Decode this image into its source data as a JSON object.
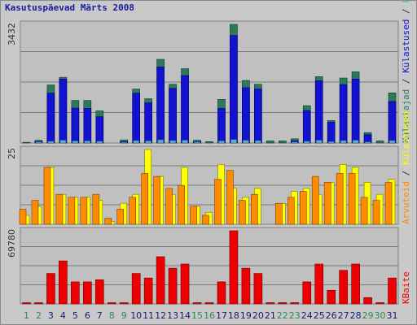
{
  "chart_data": {
    "title": "Kasutuspäevad Märts 2008",
    "type": "bar",
    "days": [
      "1",
      "2",
      "3",
      "4",
      "5",
      "6",
      "7",
      "8",
      "9",
      "10",
      "11",
      "12",
      "13",
      "14",
      "15",
      "16",
      "17",
      "18",
      "19",
      "20",
      "21",
      "22",
      "23",
      "24",
      "25",
      "26",
      "27",
      "28",
      "29",
      "30",
      "31"
    ],
    "weekend_days": [
      "1",
      "2",
      "8",
      "9",
      "15",
      "16",
      "22",
      "23",
      "29",
      "30"
    ],
    "colors": {
      "weekday_label": "#1a1a6e",
      "weekend_label": "#2e8b57",
      "visitors": "#2d7a5a",
      "visits": "#1212d0",
      "pages": "#ffff00",
      "hits": "#ff8c00",
      "bandwidth": "#ee0000",
      "files": "#5fb0c8",
      "grid": "#7a7a7a",
      "panel": "#c0c0c0"
    },
    "panels": [
      {
        "id": "traffic-top",
        "ymax_label": "3432",
        "ymax": 3432,
        "legend_text": "Külastajad / Külastused / Faile / Pöördumisi",
        "legend": [
          {
            "name": "Külastajad",
            "color": "#2d7a5a"
          },
          {
            "name": "Külastused",
            "color": "#1212d0"
          },
          {
            "name": "Faile",
            "color": "#5fb0c8"
          },
          {
            "name": "Pöördumisi",
            "color": "#2d7a5a"
          }
        ],
        "series": [
          {
            "name": "Pöördumisi",
            "values": [
              20,
              80,
              1680,
              1900,
              1230,
              1230,
              930,
              0,
              90,
              1560,
              1280,
              2420,
              1700,
              2150,
              80,
              40,
              1260,
              3432,
              1810,
              1700,
              60,
              60,
              120,
              1080,
              1920,
              650,
              1880,
              2060,
              300,
              60,
              1450
            ]
          },
          {
            "name": "Külastused",
            "values": [
              0,
              40,
              1440,
              1850,
              1010,
              1000,
              760,
              0,
              40,
              1440,
              1160,
              2200,
              1580,
              1950,
              40,
              0,
              1000,
              3110,
              1600,
              1560,
              0,
              0,
              60,
              940,
              1800,
              600,
              1690,
              1850,
              240,
              0,
              1200
            ]
          },
          {
            "name": "Faile",
            "values": [
              0,
              30,
              50,
              80,
              60,
              60,
              50,
              0,
              20,
              70,
              60,
              90,
              70,
              80,
              30,
              0,
              60,
              100,
              80,
              70,
              0,
              0,
              30,
              50,
              80,
              40,
              70,
              80,
              30,
              0,
              70
            ]
          }
        ]
      },
      {
        "id": "pages-middle",
        "ymax_label": "25",
        "ymax": 25,
        "legend_text": "Arvuteid / Külastused",
        "legend": [
          {
            "name": "Arvuteid",
            "color": "#ff8c00"
          },
          {
            "name": "Külastused",
            "color": "#ffff00"
          }
        ],
        "series": [
          {
            "name": "Külastused",
            "values": [
              3,
              6,
              19,
              10,
              9,
              9,
              8,
              1,
              7,
              10,
              25,
              16,
              10,
              19,
              6,
              4,
              20,
              12,
              9,
              12,
              0,
              7,
              11,
              12,
              10,
              14,
              20,
              19,
              14,
              10,
              15
            ]
          },
          {
            "name": "Arvuteid",
            "values": [
              5,
              8,
              19,
              10,
              9,
              9,
              10,
              2,
              5,
              9,
              17,
              16,
              12,
              13,
              6,
              3,
              15,
              18,
              8,
              10,
              0,
              7,
              9,
              11,
              16,
              14,
              17,
              17,
              9,
              8,
              14
            ]
          }
        ]
      },
      {
        "id": "bandwidth-bottom",
        "ymax_label": "69780",
        "ymax": 69780,
        "legend_text": "KBaite",
        "legend": [
          {
            "name": "KBaite",
            "color": "#ee0000"
          }
        ],
        "series": [
          {
            "name": "KBaite",
            "values": [
              0,
              0,
              29000,
              41000,
              21000,
              21000,
              23000,
              0,
              0,
              29000,
              24700,
              45000,
              34000,
              38000,
              0,
              0,
              21000,
              69780,
              34000,
              29000,
              0,
              0,
              0,
              21000,
              38000,
              13000,
              32000,
              38000,
              6000,
              0,
              24700
            ]
          }
        ]
      }
    ]
  }
}
